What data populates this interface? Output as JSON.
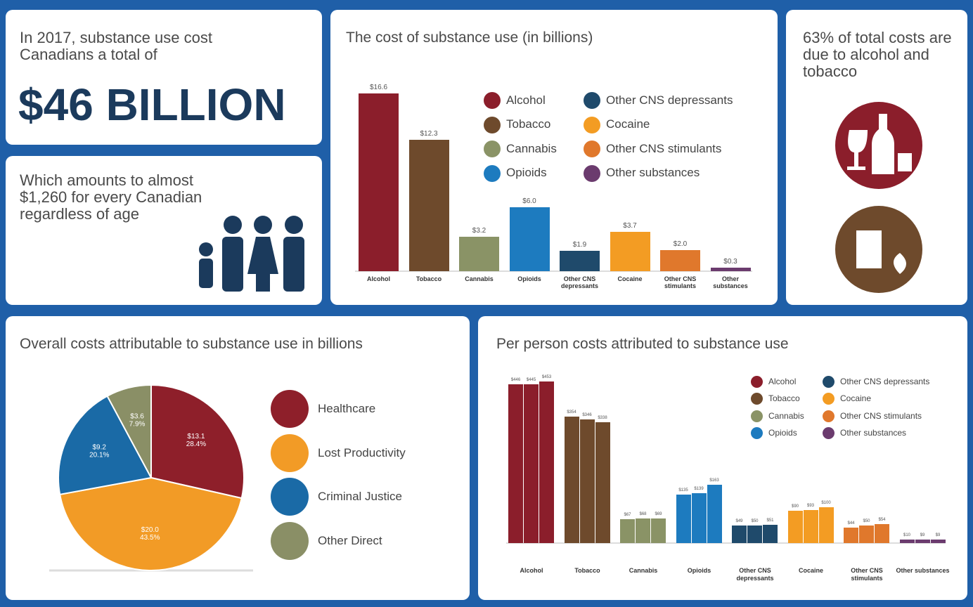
{
  "panels": {
    "headline": {
      "intro": "In 2017, substance use cost Canadians a total of",
      "amount": "$46 BILLION"
    },
    "per_capita": "Which amounts to almost $1,260 for every Canadian regardless of age",
    "share": "63% of total costs are due to alcohol and tobacco"
  },
  "chart_data": [
    {
      "type": "bar",
      "title": "The cost of substance use (in billions)",
      "categories": [
        "Alcohol",
        "Tobacco",
        "Cannabis",
        "Opioids",
        "Other CNS depressants",
        "Cocaine",
        "Other CNS stimulants",
        "Other substances"
      ],
      "values": [
        16.6,
        12.3,
        3.2,
        6.0,
        1.9,
        3.7,
        2.0,
        0.3
      ],
      "value_labels": [
        "$16.6",
        "$12.3",
        "$3.2",
        "$6.0",
        "$1.9",
        "$3.7",
        "$2.0",
        "$0.3"
      ],
      "colors": [
        "#8b1e2b",
        "#6e4a2c",
        "#8a9366",
        "#1d7bbf",
        "#1f4a6b",
        "#f39c23",
        "#e0782c",
        "#6b3b6e"
      ]
    },
    {
      "type": "pie",
      "title": "Overall costs attributable to substance use in billions",
      "categories": [
        "Healthcare",
        "Lost Productivity",
        "Criminal Justice",
        "Other Direct"
      ],
      "values": [
        13.1,
        20.0,
        9.2,
        3.6
      ],
      "value_labels": [
        "$13.1",
        "$20.0",
        "$9.2",
        "$3.6"
      ],
      "shares": [
        28.4,
        43.5,
        20.1,
        7.9
      ],
      "share_labels": [
        "28.4%",
        "43.5%",
        "20.1%",
        "7.9%"
      ],
      "colors": [
        "#8e1f2a",
        "#f29b26",
        "#1a6aa6",
        "#8a8f66"
      ]
    },
    {
      "type": "grouped-bar",
      "title": "Per person costs attributed to substance use",
      "categories": [
        "Alcohol",
        "Tobacco",
        "Cannabis",
        "Opioids",
        "Other CNS depressants",
        "Cocaine",
        "Other CNS stimulants",
        "Other substances"
      ],
      "colors": [
        "#8b1e2b",
        "#6e4a2c",
        "#8a9366",
        "#1d7bbf",
        "#1f4a6b",
        "#f39c23",
        "#e0782c",
        "#6b3b6e"
      ],
      "series": [
        {
          "values": [
            446,
            354,
            67,
            135,
            49,
            90,
            44,
            10
          ],
          "value_labels": [
            "$446",
            "$354",
            "$67",
            "$135",
            "$49",
            "$90",
            "$44",
            "$10"
          ]
        },
        {
          "values": [
            445,
            346,
            68,
            139,
            50,
            93,
            50,
            9
          ],
          "value_labels": [
            "$445",
            "$346",
            "$68",
            "$139",
            "$50",
            "$93",
            "$50",
            "$9"
          ]
        },
        {
          "values": [
            453,
            338,
            69,
            163,
            51,
            100,
            54,
            9
          ],
          "value_labels": [
            "$453",
            "$338",
            "$69",
            "$163",
            "$51",
            "$100",
            "$54",
            "$9"
          ]
        }
      ]
    }
  ]
}
